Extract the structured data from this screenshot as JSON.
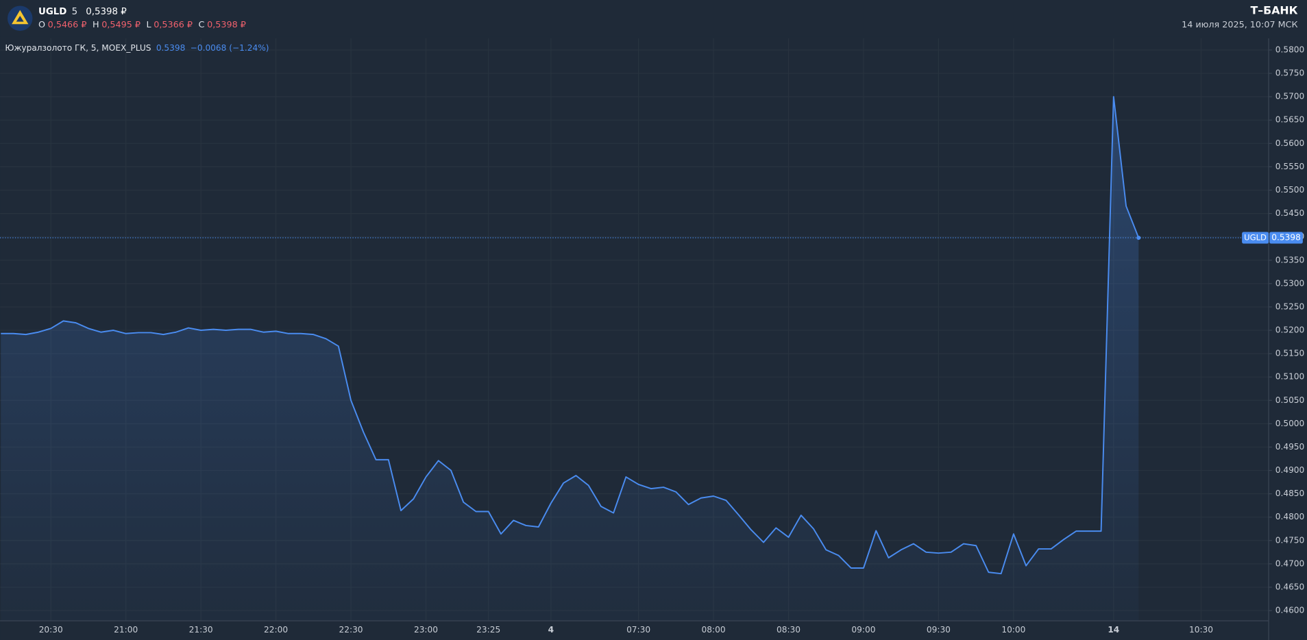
{
  "header": {
    "ticker": "UGLD",
    "interval": "5",
    "price": "0,5398 ₽",
    "ohlc": [
      {
        "key": "O",
        "value": "0,5466 ₽"
      },
      {
        "key": "H",
        "value": "0,5495 ₽"
      },
      {
        "key": "L",
        "value": "0,5366 ₽"
      },
      {
        "key": "C",
        "value": "0,5398 ₽"
      }
    ],
    "brand": "Т–БАНК",
    "datetime": "14 июля 2025, 10:07 МСК"
  },
  "legend": {
    "name": "Южуралзолото ГК, 5, MOEX_PLUS",
    "last": "0.5398",
    "change": "−0.0068 (−1.24%)"
  },
  "chart_data": {
    "type": "area",
    "color": "#4a8cf0",
    "grid": true,
    "categories": [
      null,
      null,
      null,
      null,
      "20:30",
      null,
      null,
      null,
      null,
      null,
      "21:00",
      null,
      null,
      null,
      null,
      null,
      "21:30",
      null,
      null,
      null,
      null,
      null,
      "22:00",
      null,
      null,
      null,
      null,
      null,
      "22:30",
      null,
      null,
      null,
      null,
      null,
      "23:00",
      null,
      null,
      null,
      null,
      "23:25",
      null,
      null,
      null,
      null,
      "4",
      null,
      null,
      null,
      null,
      null,
      null,
      "07:30",
      null,
      null,
      null,
      null,
      null,
      "08:00",
      null,
      null,
      null,
      null,
      null,
      "08:30",
      null,
      null,
      null,
      null,
      null,
      "09:00",
      null,
      null,
      null,
      null,
      null,
      "09:30",
      null,
      null,
      null,
      null,
      null,
      "10:00",
      null,
      null,
      null,
      null,
      null,
      null,
      null,
      "14",
      null,
      null,
      null,
      null,
      null,
      null,
      "10:30",
      null,
      null,
      null,
      null,
      null
    ],
    "series": [
      {
        "name": "UGLD",
        "color": "#4a8cf0",
        "values": [
          0.5193,
          0.5193,
          0.5191,
          0.5196,
          0.5204,
          0.522,
          0.5216,
          0.5204,
          0.5196,
          0.52,
          0.5193,
          0.5195,
          0.5195,
          0.5191,
          0.5196,
          0.5205,
          0.52,
          0.5202,
          0.52,
          0.5202,
          0.5202,
          0.5196,
          0.5198,
          0.5193,
          0.5193,
          0.5191,
          0.5182,
          0.5166,
          0.505,
          0.4982,
          0.4923,
          0.4923,
          0.4814,
          0.4839,
          0.4886,
          0.4921,
          0.49,
          0.4832,
          0.4812,
          0.4812,
          0.4764,
          0.4793,
          0.4782,
          0.4779,
          0.483,
          0.4873,
          0.4889,
          0.4868,
          0.4823,
          0.4809,
          0.4886,
          0.487,
          0.4861,
          0.4864,
          0.4854,
          0.4827,
          0.4841,
          0.4845,
          0.4836,
          0.4805,
          0.4773,
          0.4746,
          0.4777,
          0.4757,
          0.4804,
          0.4775,
          0.473,
          0.4718,
          0.4691,
          0.4691,
          0.4771,
          0.4713,
          0.473,
          0.4743,
          0.4725,
          0.4723,
          0.4725,
          0.4743,
          0.4739,
          0.4682,
          0.4679,
          0.4764,
          0.4696,
          0.4732,
          0.4732,
          0.4752,
          0.477,
          0.477,
          0.477,
          0.57,
          0.5466,
          0.5398,
          null,
          null,
          null,
          null,
          null,
          null,
          null,
          null,
          null,
          null
        ]
      }
    ],
    "current": {
      "name": "UGLD",
      "value": 0.5398
    },
    "ylim": [
      0.4578,
      0.5825
    ],
    "yticks": [
      {
        "value": 0.58,
        "label": "0.5800"
      },
      {
        "value": 0.575,
        "label": "0.5750"
      },
      {
        "value": 0.57,
        "label": "0.5700"
      },
      {
        "value": 0.565,
        "label": "0.5650"
      },
      {
        "value": 0.56,
        "label": "0.5600"
      },
      {
        "value": 0.555,
        "label": "0.5550"
      },
      {
        "value": 0.55,
        "label": "0.5500"
      },
      {
        "value": 0.545,
        "label": "0.5450"
      },
      {
        "value": 0.54,
        "label": "0.5400"
      },
      {
        "value": 0.535,
        "label": "0.5350"
      },
      {
        "value": 0.53,
        "label": "0.5300"
      },
      {
        "value": 0.525,
        "label": "0.5250"
      },
      {
        "value": 0.52,
        "label": "0.5200"
      },
      {
        "value": 0.515,
        "label": "0.5150"
      },
      {
        "value": 0.51,
        "label": "0.5100"
      },
      {
        "value": 0.505,
        "label": "0.5050"
      },
      {
        "value": 0.5,
        "label": "0.5000"
      },
      {
        "value": 0.495,
        "label": "0.4950"
      },
      {
        "value": 0.49,
        "label": "0.4900"
      },
      {
        "value": 0.485,
        "label": "0.4850"
      },
      {
        "value": 0.48,
        "label": "0.4800"
      },
      {
        "value": 0.475,
        "label": "0.4750"
      },
      {
        "value": 0.47,
        "label": "0.4700"
      },
      {
        "value": 0.465,
        "label": "0.4650"
      },
      {
        "value": 0.46,
        "label": "0.4600"
      }
    ]
  }
}
